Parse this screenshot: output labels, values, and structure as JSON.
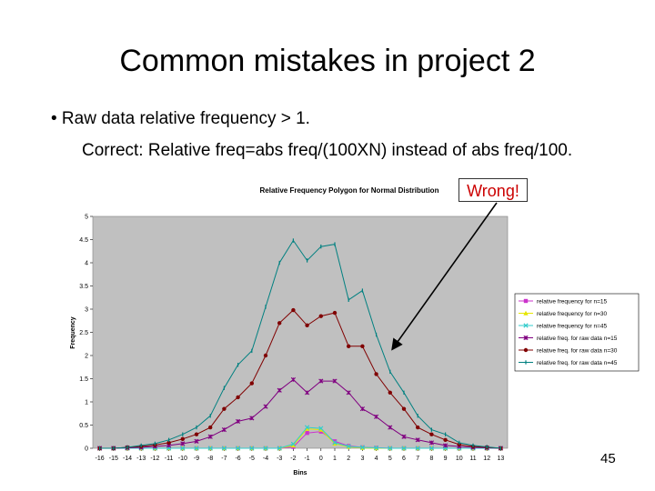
{
  "slide": {
    "title": "Common mistakes in project 2",
    "bullet": "• Raw data relative frequency > 1.",
    "correction": "Correct: Relative freq=abs freq/(100XN) instead of abs freq/100.",
    "callout": "Wrong!",
    "page_number": "45"
  },
  "chart_data": {
    "type": "line",
    "title": "Relative Frequency Polygon for Normal Distribution",
    "xlabel": "Bins",
    "ylabel": "Frequency",
    "ylim": [
      0,
      5
    ],
    "yticks": [
      "0",
      "0.5",
      "1",
      "1.5",
      "2",
      "2.5",
      "3",
      "3.5",
      "4",
      "4.5",
      "5"
    ],
    "categories": [
      "-16",
      "-15",
      "-14",
      "-13",
      "-12",
      "-11",
      "-10",
      "-9",
      "-8",
      "-7",
      "-6",
      "-5",
      "-4",
      "-3",
      "-2",
      "-1",
      "0",
      "1",
      "2",
      "3",
      "4",
      "5",
      "6",
      "7",
      "8",
      "9",
      "10",
      "11",
      "12",
      "13"
    ],
    "grid": false,
    "plot_background": "#c0c0c0",
    "legend_position": "right",
    "series": [
      {
        "name": "relative frequency for n=15",
        "color": "#cc33cc",
        "marker": "square",
        "values": [
          0,
          0,
          0,
          0,
          0,
          0,
          0,
          0,
          0,
          0,
          0,
          0,
          0,
          0,
          0.03,
          0.33,
          0.36,
          0.15,
          0.05,
          0.02,
          0.01,
          0,
          0,
          0,
          0,
          0,
          0,
          0,
          0,
          0
        ]
      },
      {
        "name": "relative frequency for n=30",
        "color": "#e6e600",
        "marker": "triangle",
        "values": [
          0,
          0,
          0,
          0,
          0,
          0,
          0,
          0,
          0,
          0,
          0,
          0,
          0,
          0,
          0.06,
          0.42,
          0.4,
          0.1,
          0.03,
          0.01,
          0,
          0,
          0,
          0,
          0,
          0,
          0,
          0,
          0,
          0
        ]
      },
      {
        "name": "relative frequency for n=45",
        "color": "#33cccc",
        "marker": "x",
        "values": [
          0,
          0,
          0,
          0,
          0,
          0,
          0,
          0,
          0,
          0,
          0,
          0,
          0,
          0,
          0.09,
          0.45,
          0.43,
          0.12,
          0.04,
          0.02,
          0.01,
          0,
          0,
          0,
          0,
          0,
          0,
          0,
          0,
          0
        ]
      },
      {
        "name": "relative freq. for raw data n=15",
        "color": "#800080",
        "marker": "star",
        "values": [
          0,
          0,
          0.01,
          0.02,
          0.04,
          0.06,
          0.1,
          0.15,
          0.25,
          0.4,
          0.58,
          0.65,
          0.9,
          1.25,
          1.48,
          1.2,
          1.45,
          1.45,
          1.2,
          0.85,
          0.68,
          0.45,
          0.25,
          0.18,
          0.12,
          0.06,
          0.04,
          0.02,
          0.01,
          0
        ]
      },
      {
        "name": "relative freq. for raw data n=30",
        "color": "#800000",
        "marker": "circle",
        "values": [
          0,
          0,
          0.02,
          0.04,
          0.07,
          0.12,
          0.2,
          0.3,
          0.45,
          0.85,
          1.1,
          1.4,
          2.0,
          2.7,
          2.98,
          2.65,
          2.85,
          2.92,
          2.2,
          2.2,
          1.6,
          1.2,
          0.85,
          0.45,
          0.3,
          0.18,
          0.08,
          0.04,
          0.02,
          0
        ]
      },
      {
        "name": "relative freq. for raw data n=45",
        "color": "#008080",
        "marker": "tick",
        "values": [
          0,
          0,
          0.02,
          0.06,
          0.1,
          0.18,
          0.3,
          0.45,
          0.7,
          1.3,
          1.8,
          2.1,
          3.05,
          4.0,
          4.48,
          4.05,
          4.35,
          4.4,
          3.2,
          3.4,
          2.45,
          1.65,
          1.2,
          0.7,
          0.4,
          0.3,
          0.12,
          0.06,
          0.03,
          0
        ]
      }
    ]
  }
}
